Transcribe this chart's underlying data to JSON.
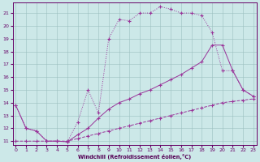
{
  "xlabel": "Windchill (Refroidissement éolien,°C)",
  "xlim": [
    -0.3,
    23.3
  ],
  "ylim": [
    10.7,
    21.8
  ],
  "xticks": [
    0,
    1,
    2,
    3,
    4,
    5,
    6,
    7,
    8,
    9,
    10,
    11,
    12,
    13,
    14,
    15,
    16,
    17,
    18,
    19,
    20,
    21,
    22,
    23
  ],
  "yticks": [
    11,
    12,
    13,
    14,
    15,
    16,
    17,
    18,
    19,
    20,
    21
  ],
  "bg_color": "#cce8e8",
  "line_color": "#993399",
  "curve1_x": [
    0,
    1,
    2,
    3,
    4,
    5,
    6,
    7,
    8,
    9,
    10,
    11,
    12,
    13,
    14,
    15,
    16,
    17,
    18,
    19,
    20,
    21,
    22,
    23
  ],
  "curve1_y": [
    13.8,
    12.0,
    11.8,
    11.0,
    11.0,
    10.95,
    12.5,
    15.0,
    13.2,
    19.0,
    20.5,
    20.4,
    21.0,
    21.0,
    21.5,
    21.3,
    21.0,
    21.0,
    20.8,
    19.5,
    16.5,
    16.5,
    15.0,
    14.5
  ],
  "curve2_x": [
    0,
    1,
    2,
    3,
    4,
    5,
    6,
    7,
    8,
    9,
    10,
    11,
    12,
    13,
    14,
    15,
    16,
    17,
    18,
    19,
    20,
    21,
    22,
    23
  ],
  "curve2_y": [
    13.8,
    12.0,
    11.8,
    11.0,
    11.0,
    10.95,
    11.5,
    12.0,
    12.8,
    13.5,
    14.0,
    14.3,
    14.7,
    15.0,
    15.4,
    15.8,
    16.2,
    16.7,
    17.2,
    18.5,
    18.5,
    16.5,
    15.0,
    14.5
  ],
  "curve3_x": [
    0,
    1,
    2,
    3,
    4,
    5,
    6,
    7,
    8,
    9,
    10,
    11,
    12,
    13,
    14,
    15,
    16,
    17,
    18,
    19,
    20,
    21,
    22,
    23
  ],
  "curve3_y": [
    11.0,
    11.0,
    11.0,
    11.0,
    11.0,
    11.0,
    11.2,
    11.4,
    11.6,
    11.8,
    12.0,
    12.2,
    12.4,
    12.6,
    12.8,
    13.0,
    13.2,
    13.4,
    13.6,
    13.8,
    14.0,
    14.1,
    14.2,
    14.3
  ]
}
